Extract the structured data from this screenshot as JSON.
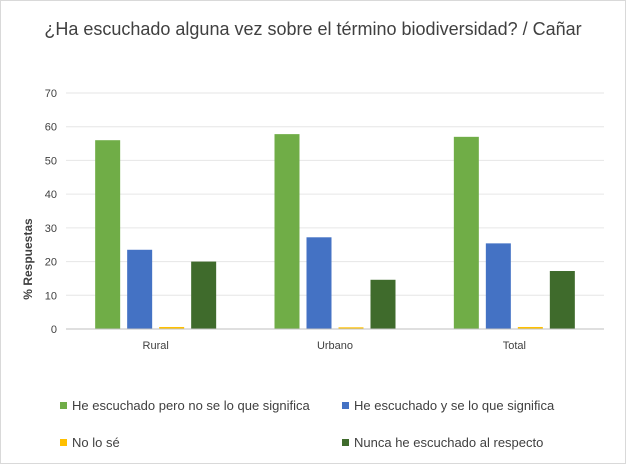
{
  "chart_data": {
    "type": "bar",
    "title": "¿Ha escuchado alguna vez sobre el término biodiversidad? / Cañar",
    "xlabel": "",
    "ylabel": "% Respuestas",
    "ylim": [
      0,
      70
    ],
    "yticks": [
      0,
      10,
      20,
      30,
      40,
      50,
      60,
      70
    ],
    "grid": true,
    "legend_position": "bottom",
    "categories": [
      "Rural",
      "Urbano",
      "Total"
    ],
    "series": [
      {
        "name": "He escuchado pero no se lo que significa",
        "color": "#70ad47",
        "values": [
          56,
          57.8,
          57
        ]
      },
      {
        "name": "He escuchado y se lo que significa",
        "color": "#4472c4",
        "values": [
          23.5,
          27.2,
          25.4
        ]
      },
      {
        "name": "No lo sé",
        "color": "#ffc000",
        "values": [
          0.6,
          0.5,
          0.6
        ]
      },
      {
        "name": "Nunca he escuchado al respecto",
        "color": "#3f6b2c",
        "values": [
          20,
          14.6,
          17.2
        ]
      }
    ]
  }
}
